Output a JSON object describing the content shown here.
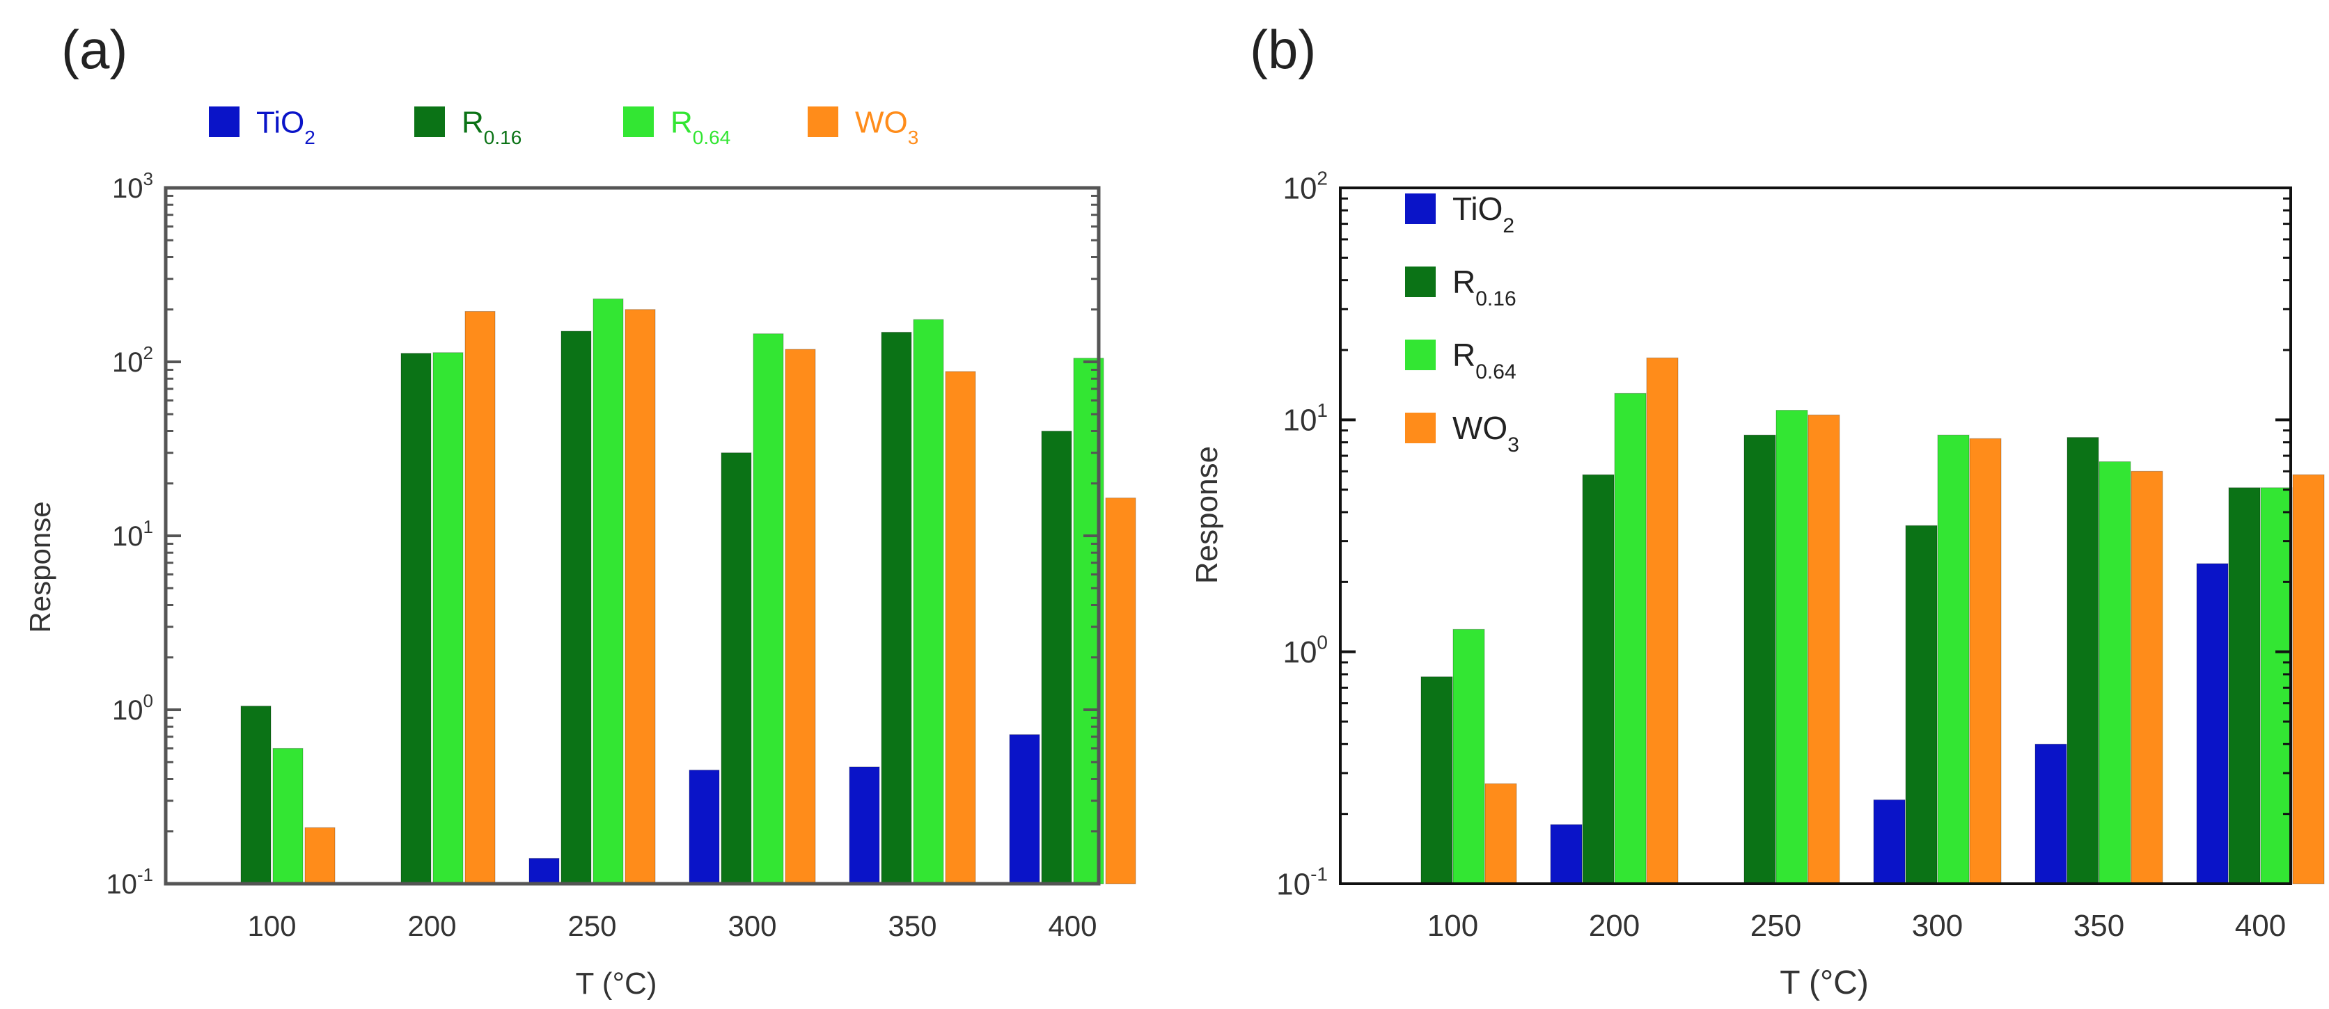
{
  "chart_data": [
    {
      "type": "bar",
      "panel_label": "(a)",
      "xlabel": "T (°C)",
      "ylabel": "Response",
      "yscale": "log",
      "ylim": [
        0.1,
        1000
      ],
      "y_tick_labels": [
        {
          "base": "10",
          "exp": "-1"
        },
        {
          "base": "10",
          "exp": "0"
        },
        {
          "base": "10",
          "exp": "1"
        },
        {
          "base": "10",
          "exp": "2"
        },
        {
          "base": "10",
          "exp": "3"
        }
      ],
      "legend_position": "top (horizontal, above plot)",
      "categories": [
        "100",
        "200",
        "250",
        "300",
        "350",
        "400"
      ],
      "series": [
        {
          "name": "TiO2",
          "label_main": "TiO",
          "label_sub": "2",
          "color": "#0a14c8",
          "values": [
            null,
            null,
            0.14,
            0.45,
            0.47,
            0.72
          ]
        },
        {
          "name": "R0.16",
          "label_main": "R",
          "label_sub": "0.16",
          "color": "#0b7316",
          "values": [
            1.05,
            112,
            150,
            30,
            148,
            40
          ]
        },
        {
          "name": "R0.64",
          "label_main": "R",
          "label_sub": "0.64",
          "color": "#33e633",
          "values": [
            0.6,
            113,
            230,
            145,
            175,
            105
          ]
        },
        {
          "name": "WO3",
          "label_main": "WO",
          "label_sub": "3",
          "color": "#ff8c1a",
          "values": [
            0.21,
            195,
            200,
            118,
            88,
            16.5
          ]
        }
      ]
    },
    {
      "type": "bar",
      "panel_label": "(b)",
      "xlabel": "T (°C)",
      "ylabel": "Response",
      "yscale": "log",
      "ylim": [
        0.1,
        100
      ],
      "y_tick_labels": [
        {
          "base": "10",
          "exp": "-1"
        },
        {
          "base": "10",
          "exp": "0"
        },
        {
          "base": "10",
          "exp": "1"
        },
        {
          "base": "10",
          "exp": "2"
        }
      ],
      "legend_position": "top-left (inside plot, vertical)",
      "categories": [
        "100",
        "200",
        "250",
        "300",
        "350",
        "400"
      ],
      "series": [
        {
          "name": "TiO2",
          "label_main": "TiO",
          "label_sub": "2",
          "color": "#0a14c8",
          "values": [
            null,
            0.18,
            null,
            0.23,
            0.4,
            2.4
          ]
        },
        {
          "name": "R0.16",
          "label_main": "R",
          "label_sub": "0.16",
          "color": "#0b7316",
          "values": [
            0.78,
            5.8,
            8.6,
            3.5,
            8.4,
            5.1
          ]
        },
        {
          "name": "R0.64",
          "label_main": "R",
          "label_sub": "0.64",
          "color": "#33e633",
          "values": [
            1.25,
            13,
            11,
            8.6,
            6.6,
            5.1
          ]
        },
        {
          "name": "WO3",
          "label_main": "WO",
          "label_sub": "3",
          "color": "#ff8c1a",
          "values": [
            0.27,
            18.5,
            10.5,
            8.3,
            6.0,
            5.8
          ]
        }
      ]
    }
  ]
}
